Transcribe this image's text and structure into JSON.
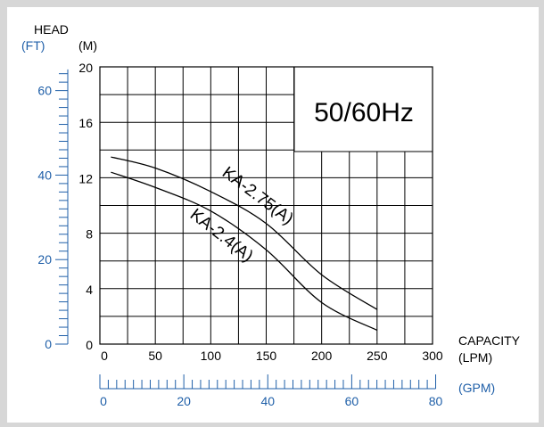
{
  "chart_data": {
    "type": "line",
    "frequency_label": "50/60Hz",
    "y_title": "HEAD",
    "y_unit_left": "(FT)",
    "y_unit_right": "(M)",
    "x_title": "CAPACITY",
    "x_unit": "(LPM)",
    "x2_unit": "(GPM)",
    "xlim": [
      0,
      300
    ],
    "ylim": [
      0,
      20
    ],
    "x_ticks": [
      "0",
      "50",
      "100",
      "150",
      "200",
      "250",
      "300"
    ],
    "y_ticks_m": [
      "0",
      "4",
      "8",
      "12",
      "16",
      "20"
    ],
    "y_ticks_ft": [
      "0",
      "20",
      "40",
      "60"
    ],
    "x2_ticks_gpm": [
      "0",
      "20",
      "40",
      "60",
      "80"
    ],
    "grid": true,
    "series": [
      {
        "name": "KA-2.75(A)",
        "x": [
          10,
          50,
          100,
          150,
          200,
          250
        ],
        "y": [
          13.5,
          12.7,
          11.0,
          8.7,
          5.0,
          2.5
        ]
      },
      {
        "name": "KA-2.4(A)",
        "x": [
          10,
          50,
          100,
          150,
          200,
          250
        ],
        "y": [
          12.4,
          11.3,
          9.6,
          6.8,
          3.0,
          1.0
        ]
      }
    ]
  },
  "colors": {
    "axis": "#000000",
    "secondary_scale": "#1f5fa8",
    "background": "#d7d7d7"
  }
}
